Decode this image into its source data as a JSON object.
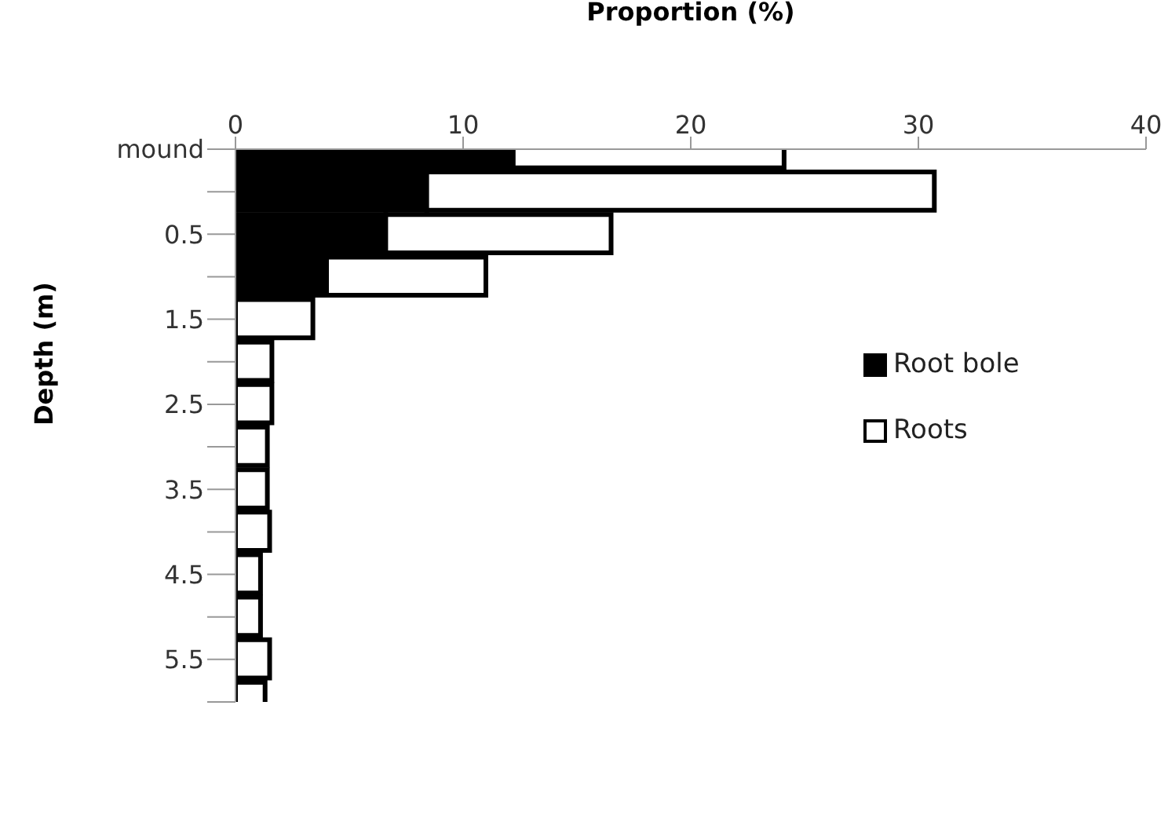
{
  "chart_data": {
    "type": "bar",
    "orientation": "horizontal",
    "stacked": true,
    "xlabel": "Proportion (%)",
    "ylabel": "Depth (m)",
    "categories": [
      "mound",
      null,
      "0.5",
      null,
      "1.5",
      null,
      "2.5",
      null,
      "3.5",
      null,
      "4.5",
      null,
      "5.5",
      null
    ],
    "series": [
      {
        "name": "Root bole",
        "color": "#000000",
        "values": [
          12.2,
          8.4,
          6.6,
          4.0,
          0,
          0,
          0,
          0,
          0,
          0,
          0,
          0,
          0,
          0
        ]
      },
      {
        "name": "Roots",
        "color": "#ffffff",
        "values": [
          11.9,
          22.3,
          9.9,
          7.0,
          3.4,
          1.6,
          1.6,
          1.4,
          1.4,
          1.5,
          1.1,
          1.1,
          1.5,
          1.3
        ]
      }
    ],
    "xlim": [
      0,
      40
    ],
    "xticks": [
      0,
      10,
      20,
      30,
      40
    ],
    "legend": "right",
    "grid": false
  }
}
